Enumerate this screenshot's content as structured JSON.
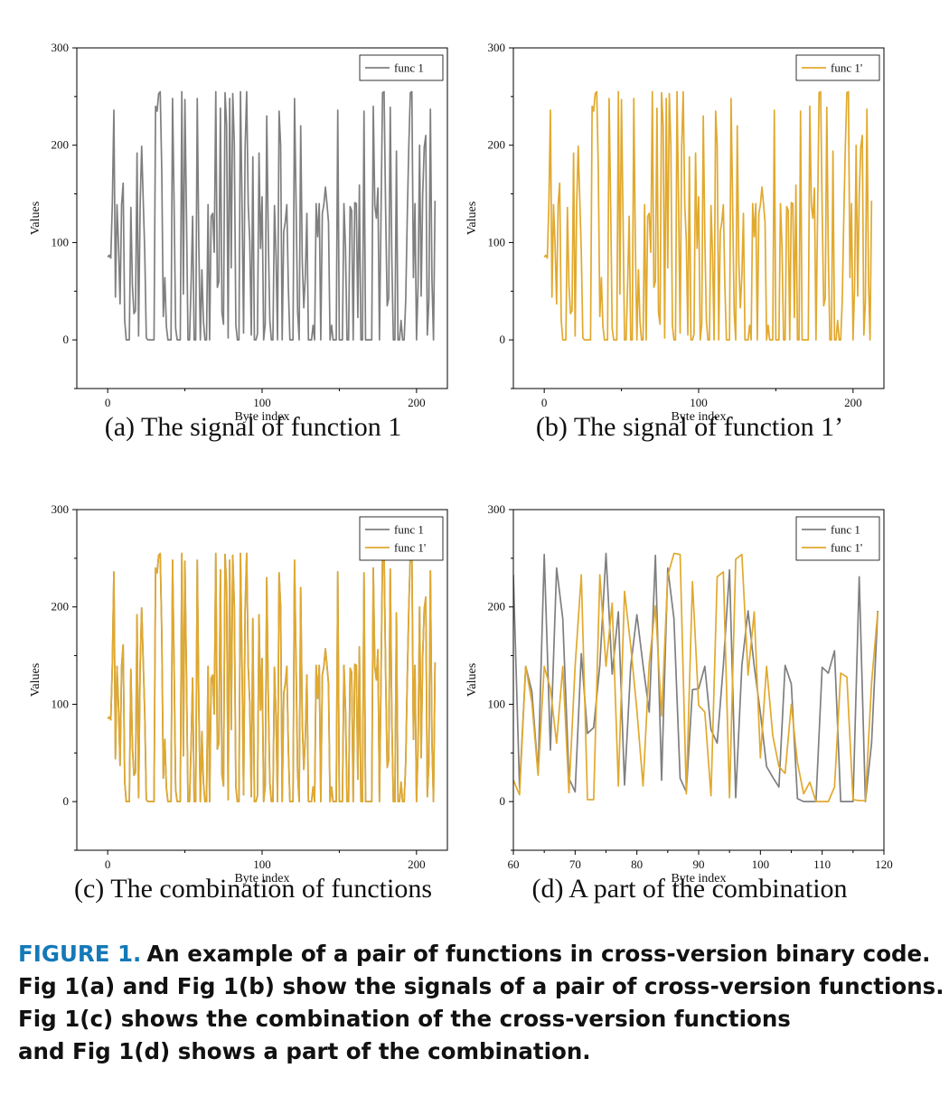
{
  "chart_data": [
    {
      "id": "a",
      "type": "line",
      "subcaption": "(a)  The signal of function 1",
      "xlabel": "Byte index",
      "ylabel": "Values",
      "xlim": [
        -20,
        220
      ],
      "ylim": [
        -50,
        300
      ],
      "xticks": [
        0,
        100,
        200
      ],
      "yticks": [
        0,
        100,
        200,
        300
      ],
      "legend": "top-right",
      "series": [
        {
          "name": "func 1",
          "color": "#7f7f7f",
          "x_start": 0,
          "values": [
            85,
            87,
            84,
            140,
            236,
            44,
            139,
            98,
            37,
            139,
            161,
            20,
            0,
            0,
            0,
            136,
            56,
            27,
            30,
            192,
            4,
            138,
            199,
            144,
            90,
            2,
            0,
            0,
            0,
            0,
            0,
            240,
            235,
            253,
            255,
            175,
            24,
            64,
            14,
            0,
            0,
            0,
            248,
            139,
            12,
            0,
            0,
            0,
            255,
            47,
            247,
            130,
            0,
            0,
            57,
            127,
            0,
            0,
            248,
            98,
            0,
            72,
            19,
            0,
            0,
            139,
            0,
            127,
            130,
            90,
            255,
            54,
            60,
            238,
            28,
            16,
            254,
            221,
            2,
            248,
            74,
            253,
            201,
            15,
            0,
            0,
            255,
            140,
            7,
            198,
            255,
            139,
            102,
            5,
            188,
            0,
            0,
            6,
            192,
            94,
            147,
            0,
            16,
            230,
            106,
            20,
            0,
            0,
            138,
            87,
            0,
            235,
            200,
            0,
            111,
            121,
            139,
            54,
            0,
            0,
            0,
            248,
            140,
            29,
            0,
            220,
            82,
            33,
            66,
            130,
            0,
            0,
            0,
            15,
            0,
            140,
            106,
            140,
            0,
            130,
            139,
            157,
            140,
            121,
            0,
            15,
            0,
            0,
            0,
            236,
            0,
            0,
            0,
            140,
            95,
            0,
            0,
            137,
            133,
            0,
            141,
            140,
            23,
            159,
            0,
            0,
            235,
            0,
            0,
            0,
            0,
            0,
            240,
            138,
            125,
            156,
            0,
            125,
            254,
            255,
            133,
            35,
            43,
            239,
            86,
            0,
            0,
            194,
            0,
            0,
            20,
            0,
            0,
            40,
            125,
            198,
            254,
            255,
            64,
            140,
            0,
            55,
            200,
            45,
            149,
            198,
            210,
            5,
            40,
            237,
            62,
            0,
            143
          ]
        }
      ]
    },
    {
      "id": "b",
      "type": "line",
      "subcaption": "(b)  The signal of function 1’",
      "xlabel": "Byte index",
      "ylabel": "Values",
      "xlim": [
        -20,
        220
      ],
      "ylim": [
        -50,
        300
      ],
      "xticks": [
        0,
        100,
        200
      ],
      "yticks": [
        0,
        100,
        200,
        300
      ],
      "legend": "top-right",
      "series": [
        {
          "name": "func 1'",
          "color": "#e1a92e",
          "x_start": 0,
          "values": [
            85,
            87,
            84,
            140,
            236,
            44,
            139,
            98,
            37,
            139,
            161,
            20,
            0,
            0,
            0,
            136,
            56,
            27,
            30,
            192,
            4,
            138,
            199,
            144,
            90,
            2,
            0,
            0,
            0,
            0,
            0,
            240,
            235,
            253,
            255,
            175,
            24,
            64,
            14,
            0,
            0,
            0,
            248,
            139,
            12,
            0,
            0,
            0,
            255,
            47,
            247,
            130,
            0,
            0,
            57,
            127,
            0,
            0,
            248,
            98,
            0,
            72,
            19,
            0,
            0,
            139,
            0,
            127,
            130,
            90,
            255,
            54,
            60,
            238,
            28,
            16,
            254,
            221,
            2,
            248,
            74,
            253,
            201,
            15,
            0,
            0,
            255,
            140,
            7,
            198,
            255,
            139,
            102,
            5,
            188,
            0,
            0,
            6,
            192,
            94,
            147,
            0,
            16,
            230,
            106,
            20,
            0,
            0,
            138,
            87,
            0,
            235,
            200,
            0,
            111,
            121,
            139,
            54,
            0,
            0,
            0,
            248,
            140,
            29,
            0,
            220,
            82,
            33,
            66,
            130,
            0,
            0,
            0,
            15,
            0,
            140,
            106,
            140,
            0,
            130,
            139,
            157,
            140,
            121,
            0,
            15,
            0,
            0,
            0,
            236,
            0,
            0,
            0,
            140,
            95,
            0,
            0,
            137,
            133,
            0,
            141,
            140,
            23,
            159,
            0,
            0,
            235,
            0,
            0,
            0,
            0,
            0,
            240,
            138,
            125,
            156,
            0,
            125,
            254,
            255,
            133,
            35,
            43,
            239,
            86,
            0,
            0,
            194,
            0,
            0,
            20,
            0,
            0,
            40,
            125,
            198,
            254,
            255,
            64,
            140,
            0,
            55,
            200,
            45,
            149,
            198,
            210,
            5,
            40,
            237,
            62,
            0,
            143
          ]
        }
      ]
    },
    {
      "id": "c",
      "type": "line",
      "subcaption": "(c)  The combination of functions",
      "xlabel": "Byte index",
      "ylabel": "Values",
      "xlim": [
        -20,
        220
      ],
      "ylim": [
        -50,
        300
      ],
      "xticks": [
        0,
        100,
        200
      ],
      "yticks": [
        0,
        100,
        200,
        300
      ],
      "legend": "top-right",
      "series": [
        {
          "name": "func 1",
          "color": "#7f7f7f",
          "x_start": 0,
          "values": [
            85,
            87,
            84,
            140,
            236,
            44,
            139,
            98,
            37,
            139,
            161,
            20,
            0,
            0,
            0,
            136,
            56,
            27,
            30,
            192,
            4,
            138,
            199,
            144,
            90,
            2,
            0,
            0,
            0,
            0,
            0,
            240,
            235,
            253,
            255,
            175,
            24,
            64,
            14,
            0,
            0,
            0,
            248,
            139,
            12,
            0,
            0,
            0,
            255,
            47,
            247,
            130,
            0,
            0,
            57,
            127,
            0,
            0,
            248,
            98,
            0,
            72,
            19,
            0,
            0,
            139,
            0,
            127,
            130,
            90,
            255,
            54,
            60,
            238,
            28,
            16,
            254,
            221,
            2,
            248,
            74,
            253,
            201,
            15,
            0,
            0,
            255,
            140,
            7,
            198,
            255,
            139,
            102,
            5,
            188,
            0,
            0,
            6,
            192,
            94,
            147,
            0,
            16,
            230,
            106,
            20,
            0,
            0,
            138,
            87,
            0,
            235,
            200,
            0,
            111,
            121,
            139,
            54,
            0,
            0,
            0,
            248,
            140,
            29,
            0,
            220,
            82,
            33,
            66,
            130,
            0,
            0,
            0,
            15,
            0,
            140,
            106,
            140,
            0,
            130,
            139,
            157,
            140,
            121,
            0,
            15,
            0,
            0,
            0,
            236,
            0,
            0,
            0,
            140,
            95,
            0,
            0,
            137,
            133,
            0,
            141,
            140,
            23,
            159,
            0,
            0,
            235,
            0,
            0,
            0,
            0,
            0,
            240,
            138,
            125,
            156,
            0,
            125,
            254,
            255,
            133,
            35,
            43,
            239,
            86,
            0,
            0,
            194,
            0,
            0,
            20,
            0,
            0,
            40,
            125,
            198,
            254,
            255,
            64,
            140,
            0,
            55,
            200,
            45,
            149,
            198,
            210,
            5,
            40,
            237,
            62,
            0,
            143
          ]
        },
        {
          "name": "func 1'",
          "color": "#e1a92e",
          "x_start": 0,
          "values": [
            85,
            87,
            84,
            140,
            236,
            44,
            139,
            98,
            37,
            139,
            161,
            20,
            0,
            0,
            0,
            136,
            56,
            27,
            30,
            192,
            4,
            138,
            199,
            144,
            90,
            2,
            0,
            0,
            0,
            0,
            0,
            240,
            235,
            253,
            255,
            175,
            24,
            64,
            14,
            0,
            0,
            0,
            248,
            139,
            12,
            0,
            0,
            0,
            255,
            47,
            247,
            130,
            0,
            0,
            57,
            127,
            0,
            0,
            248,
            98,
            0,
            72,
            19,
            0,
            0,
            139,
            0,
            127,
            130,
            90,
            255,
            54,
            60,
            238,
            28,
            16,
            254,
            221,
            2,
            248,
            74,
            253,
            201,
            15,
            0,
            0,
            255,
            140,
            7,
            198,
            255,
            139,
            102,
            5,
            188,
            0,
            0,
            6,
            192,
            94,
            147,
            0,
            16,
            230,
            106,
            20,
            0,
            0,
            138,
            87,
            0,
            235,
            200,
            0,
            111,
            121,
            139,
            54,
            0,
            0,
            0,
            248,
            140,
            29,
            0,
            220,
            82,
            33,
            66,
            130,
            0,
            0,
            0,
            15,
            0,
            140,
            106,
            140,
            0,
            130,
            139,
            157,
            140,
            121,
            0,
            15,
            0,
            0,
            0,
            236,
            0,
            0,
            0,
            140,
            95,
            0,
            0,
            137,
            133,
            0,
            141,
            140,
            23,
            159,
            0,
            0,
            235,
            0,
            0,
            0,
            0,
            0,
            240,
            138,
            125,
            156,
            0,
            125,
            254,
            255,
            133,
            35,
            43,
            239,
            86,
            0,
            0,
            194,
            0,
            0,
            20,
            0,
            0,
            40,
            125,
            198,
            254,
            255,
            64,
            140,
            0,
            55,
            200,
            45,
            149,
            198,
            210,
            5,
            40,
            237,
            62,
            0,
            143
          ]
        }
      ]
    },
    {
      "id": "d",
      "type": "line",
      "subcaption": "(d)  A part of the combination",
      "xlabel": "Byte index",
      "ylabel": "Values",
      "xlim": [
        60,
        120
      ],
      "ylim": [
        -50,
        300
      ],
      "xticks": [
        60,
        70,
        80,
        90,
        100,
        110,
        120
      ],
      "yticks": [
        0,
        100,
        200,
        300
      ],
      "legend": "top-right",
      "series": [
        {
          "name": "func 1",
          "color": "#7f7f7f",
          "x_start": 60,
          "values": [
            233,
            14,
            139,
            113,
            29,
            254,
            53,
            240,
            188,
            24,
            10,
            152,
            70,
            76,
            140,
            255,
            131,
            195,
            17,
            139,
            192,
            140,
            92,
            253,
            22,
            240,
            188,
            24,
            10,
            115,
            116,
            139,
            74,
            60,
            140,
            238,
            4,
            140,
            196,
            139,
            91,
            36,
            25,
            15,
            140,
            121,
            3,
            0,
            0,
            0,
            138,
            132,
            155,
            0,
            0,
            0,
            231,
            0,
            60,
            196
          ]
        },
        {
          "name": "func 1'",
          "color": "#e1a92e",
          "x_start": 60,
          "values": [
            22,
            7,
            139,
            102,
            27,
            139,
            116,
            60,
            139,
            9,
            139,
            233,
            2,
            2,
            233,
            139,
            204,
            16,
            216,
            160,
            94,
            16,
            142,
            201,
            88,
            232,
            255,
            254,
            8,
            226,
            99,
            92,
            6,
            231,
            236,
            4,
            249,
            254,
            130,
            195,
            45,
            139,
            68,
            36,
            29,
            100,
            40,
            8,
            20,
            0,
            0,
            0,
            15,
            132,
            128,
            2,
            1,
            1,
            122,
            195
          ]
        }
      ]
    }
  ],
  "caption": {
    "label": "FIGURE 1.",
    "line1": "An example of a pair of functions in cross-version binary code.",
    "line2": "Fig 1(a) and Fig 1(b) show the signals of a pair of cross-version functions.",
    "line3": "Fig 1(c) shows the combination of the cross-version functions",
    "line4": "and Fig 1(d) shows a part of the combination."
  }
}
